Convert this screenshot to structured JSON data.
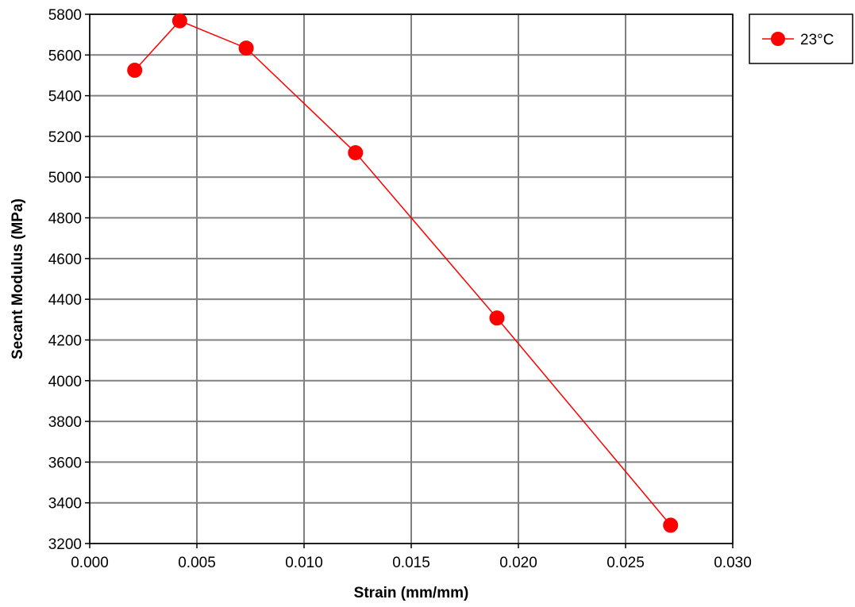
{
  "chart_data": {
    "type": "line",
    "title": "",
    "xlabel": "Strain (mm/mm)",
    "ylabel": "Secant Modulus (MPa)",
    "xlim": [
      0.0,
      0.03
    ],
    "ylim": [
      3200,
      5800
    ],
    "x_ticks": [
      "0.000",
      "0.005",
      "0.010",
      "0.015",
      "0.020",
      "0.025",
      "0.030"
    ],
    "y_ticks": [
      "3200",
      "3400",
      "3600",
      "3800",
      "4000",
      "4200",
      "4400",
      "4600",
      "4800",
      "5000",
      "5200",
      "5400",
      "5600",
      "5800"
    ],
    "grid": true,
    "legend_position": "top-right (outside plot)",
    "series": [
      {
        "name": "23°C",
        "color": "#ff0000",
        "marker": "circle",
        "x": [
          0.0021,
          0.0042,
          0.0073,
          0.0124,
          0.019,
          0.0271
        ],
        "y": [
          5525,
          5768,
          5634,
          5120,
          4308,
          3290
        ]
      }
    ]
  }
}
